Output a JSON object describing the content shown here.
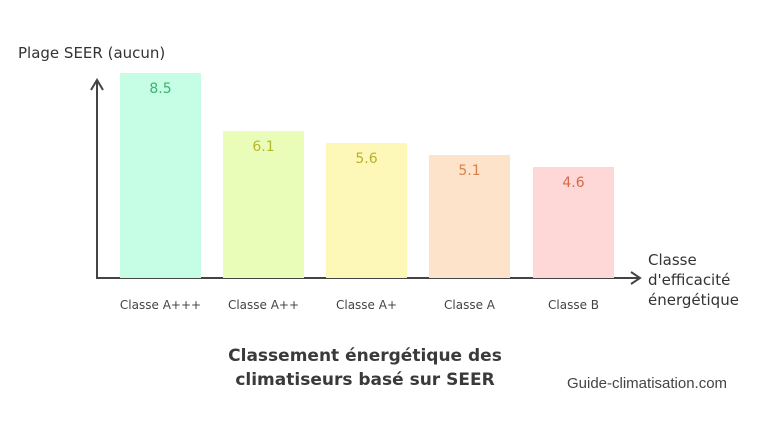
{
  "chart_data": {
    "type": "bar",
    "title": "Classement énergétique des climatiseurs basé sur SEER",
    "xlabel": "Classe d'efficacité énergétique",
    "ylabel": "Plage SEER (aucun)",
    "categories": [
      "Classe A+++",
      "Classe A++",
      "Classe A+",
      "Classe A",
      "Classe B"
    ],
    "values": [
      8.5,
      6.1,
      5.6,
      5.1,
      4.6
    ],
    "value_labels": [
      "8.5",
      "6.1",
      "5.6",
      "5.1",
      "4.6"
    ],
    "bar_colors": [
      "#c6fde5",
      "#e9fdb8",
      "#fdf8b8",
      "#fde3c9",
      "#fdd8d6"
    ],
    "label_colors": [
      "#3cb371",
      "#b5b82a",
      "#b8b02a",
      "#d9804a",
      "#d9674a"
    ],
    "ylim": [
      0,
      8.5
    ],
    "grid": false,
    "legend": "none"
  },
  "labels": {
    "y_axis": "Plage SEER (aucun)",
    "x_axis_line1": "Classe",
    "x_axis_line2": "d'efficacité",
    "x_axis_line3": "énergétique",
    "title_line1": "Classement énergétique des",
    "title_line2": "climatiseurs basé sur SEER",
    "source": "Guide-climatisation.com"
  }
}
